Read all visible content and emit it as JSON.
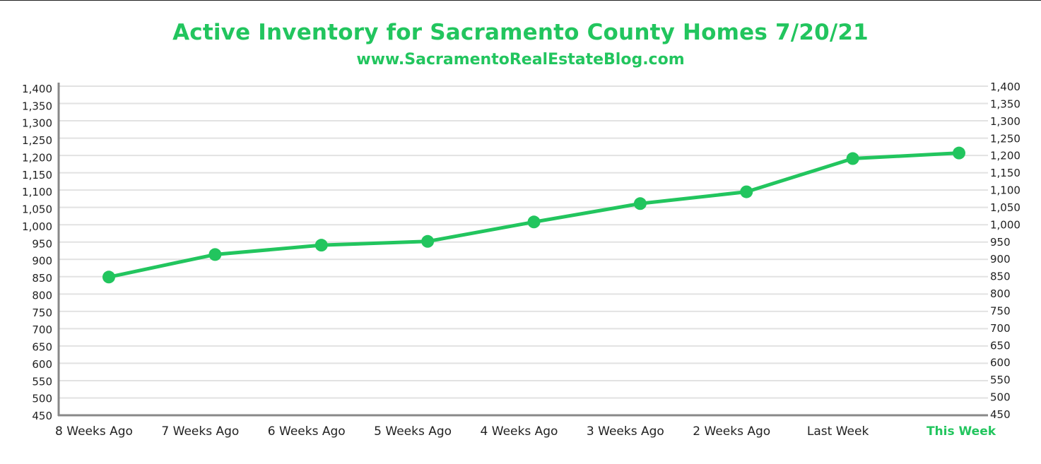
{
  "chart_data": {
    "type": "line",
    "title": "Active Inventory for Sacramento County Homes 7/20/21",
    "subtitle": "www.SacramentoRealEstateBlog.com",
    "categories": [
      "8 Weeks Ago",
      "7 Weeks Ago",
      "6 Weeks Ago",
      "5 Weeks Ago",
      "4 Weeks Ago",
      "3 Weeks Ago",
      "2 Weeks Ago",
      "Last Week",
      "This Week"
    ],
    "values": [
      849,
      914,
      941,
      952,
      1008,
      1061,
      1095,
      1191,
      1207
    ],
    "ylim": [
      450,
      1400
    ],
    "yticks": [
      "1,400",
      "1,350",
      "1,300",
      "1,250",
      "1,200",
      "1,150",
      "1,100",
      "1,050",
      "1,000",
      "950",
      "900",
      "850",
      "800",
      "750",
      "700",
      "650",
      "600",
      "550",
      "500",
      "450"
    ],
    "highlight_category": "This Week",
    "grid": true,
    "colors": {
      "line": "#22c55e",
      "highlight_label": "#22c55e",
      "grid": "#e2e2e2",
      "axis": "#888888",
      "text": "#222222"
    }
  }
}
